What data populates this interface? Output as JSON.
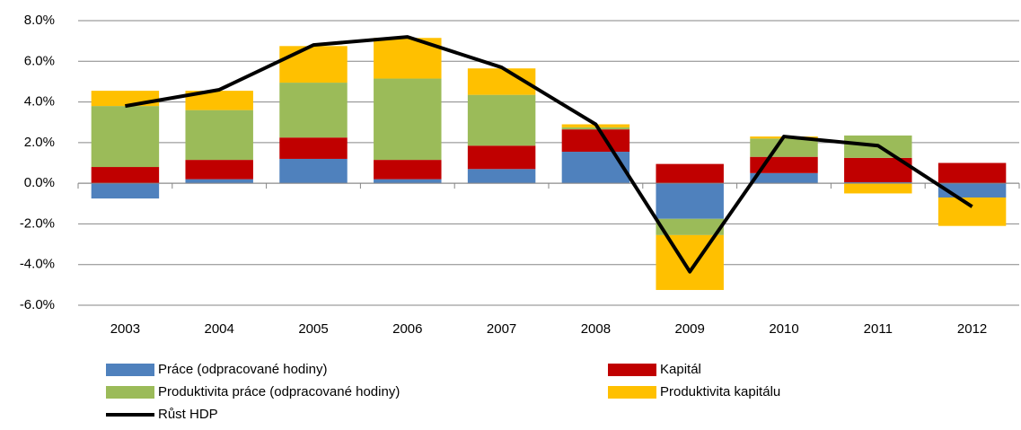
{
  "chart_data": {
    "type": "stacked-bar-line",
    "categories": [
      "2003",
      "2004",
      "2005",
      "2006",
      "2007",
      "2008",
      "2009",
      "2010",
      "2011",
      "2012"
    ],
    "series": [
      {
        "name": "Práce (odpracované hodiny)",
        "color": "#4f81bd",
        "values": [
          -0.75,
          0.2,
          1.2,
          0.2,
          0.7,
          1.55,
          -1.75,
          0.5,
          0.05,
          -0.7
        ]
      },
      {
        "name": "Kapitál",
        "color": "#c00000",
        "values": [
          0.8,
          0.95,
          1.05,
          0.95,
          1.15,
          1.1,
          0.95,
          0.8,
          1.2,
          1.0
        ]
      },
      {
        "name": "Produktivita práce (odpracované hodiny)",
        "color": "#9bbb59",
        "values": [
          3.0,
          2.45,
          2.7,
          4.0,
          2.5,
          0.1,
          -0.8,
          0.9,
          1.1,
          0
        ]
      },
      {
        "name": "Produktivita kapitálu",
        "color": "#ffc000",
        "values": [
          0.75,
          0.95,
          1.8,
          2.0,
          1.3,
          0.15,
          -2.7,
          0.1,
          -0.5,
          -1.4
        ]
      },
      {
        "name": "Růst HDP",
        "color": "#000000",
        "type": "line",
        "values": [
          3.8,
          4.6,
          6.8,
          7.2,
          5.7,
          2.9,
          -4.35,
          2.3,
          1.85,
          -1.15
        ]
      }
    ],
    "ylim": [
      -6,
      8
    ],
    "yticks": [
      {
        "value": -6,
        "label": "-6.0%"
      },
      {
        "value": -4,
        "label": "-4.0%"
      },
      {
        "value": -2,
        "label": "-2.0%"
      },
      {
        "value": 0,
        "label": "0.0%"
      },
      {
        "value": 2,
        "label": "2.0%"
      },
      {
        "value": 4,
        "label": "4.0%"
      },
      {
        "value": 6,
        "label": "6.0%"
      },
      {
        "value": 8,
        "label": "8.0%"
      }
    ],
    "grid": true
  }
}
